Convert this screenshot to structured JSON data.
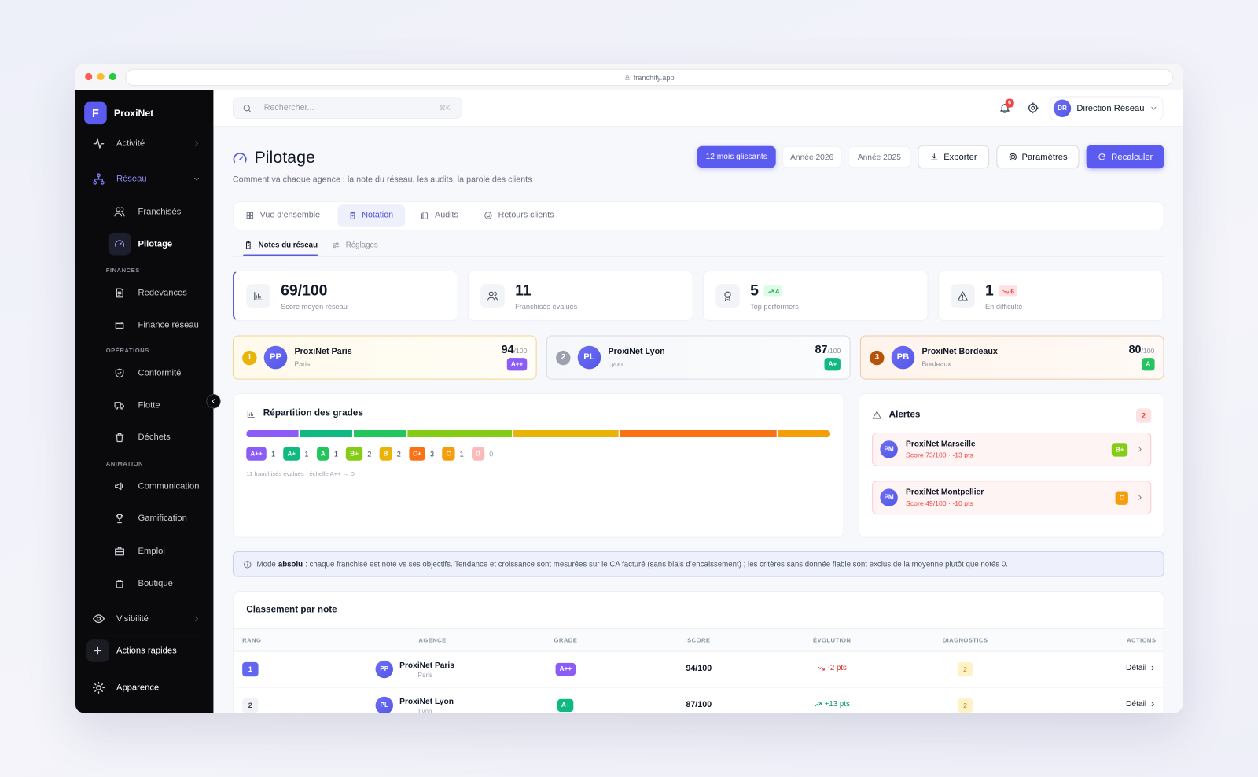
{
  "browser": {
    "url": "franchify.app"
  },
  "sidebar": {
    "brand_initial": "F",
    "brand": "ProxiNet",
    "top": [
      "Activité",
      "Réseau"
    ],
    "network": [
      "Franchisés",
      "Pilotage"
    ],
    "sections": [
      {
        "title": "FINANCES",
        "items": [
          "Redevances",
          "Finance réseau"
        ]
      },
      {
        "title": "OPÉRATIONS",
        "items": [
          "Conformité",
          "Flotte",
          "Déchets"
        ]
      },
      {
        "title": "ANIMATION",
        "items": [
          "Communication",
          "Gamification",
          "Emploi",
          "Boutique"
        ]
      }
    ],
    "bottom": {
      "visibility": "Visibilité",
      "quick_actions": "Actions rapides",
      "appearance": "Apparence"
    }
  },
  "topbar": {
    "search_placeholder": "Rechercher...",
    "shortcut": "⌘K",
    "notifications": 6,
    "user_initials": "DR",
    "user_name": "Direction Réseau"
  },
  "header": {
    "title": "Pilotage",
    "subtitle": "Comment va chaque agence : la note du réseau, les audits, la parole des clients",
    "periods": [
      "12 mois glissants",
      "Année 2026",
      "Année 2025"
    ],
    "actions": [
      "Exporter",
      "Paramètres",
      "Recalculer"
    ]
  },
  "tabs": [
    "Vue d’ensemble",
    "Notation",
    "Audits",
    "Retours clients"
  ],
  "subtabs": [
    "Notes du réseau",
    "Réglages"
  ],
  "kpis": [
    {
      "value": "69/100",
      "label": "Score moyen réseau"
    },
    {
      "value": 11,
      "label": "Franchisés évalués"
    },
    {
      "value": 5,
      "delta": 4,
      "trend": "up",
      "label": "Top performers"
    },
    {
      "value": 1,
      "delta": 6,
      "trend": "down",
      "label": "En difficulté"
    }
  ],
  "podium": [
    {
      "rank": 1,
      "initials": "PP",
      "name": "ProxiNet Paris",
      "city": "Paris",
      "score": 94,
      "out_of": "/100",
      "grade": "A++"
    },
    {
      "rank": 2,
      "initials": "PL",
      "name": "ProxiNet Lyon",
      "city": "Lyon",
      "score": 87,
      "out_of": "/100",
      "grade": "A+"
    },
    {
      "rank": 3,
      "initials": "PB",
      "name": "ProxiNet Bordeaux",
      "city": "Bordeaux",
      "score": 80,
      "out_of": "/100",
      "grade": "A"
    }
  ],
  "grades": {
    "title": "Répartition des grades",
    "items": [
      {
        "label": "A++",
        "count": 1,
        "color": "#8b5cf6"
      },
      {
        "label": "A+",
        "count": 1,
        "color": "#10b981"
      },
      {
        "label": "A",
        "count": 1,
        "color": "#22c55e"
      },
      {
        "label": "B+",
        "count": 2,
        "color": "#84cc16"
      },
      {
        "label": "B",
        "count": 2,
        "color": "#eab308"
      },
      {
        "label": "C+",
        "count": 3,
        "color": "#f97316"
      },
      {
        "label": "C",
        "count": 1,
        "color": "#f59e0b"
      },
      {
        "label": "D",
        "count": 0,
        "color": "#fca5a5"
      }
    ],
    "note": "11 franchisés évalués · échelle A++ → D"
  },
  "alerts": {
    "title": "Alertes",
    "count": 2,
    "items": [
      {
        "initials": "PM",
        "name": "ProxiNet Marseille",
        "detail": "Score 73/100 · -13 pts",
        "grade": "B+"
      },
      {
        "initials": "PM",
        "name": "ProxiNet Montpellier",
        "detail": "Score 49/100 · -10 pts",
        "grade": "C"
      }
    ]
  },
  "info": {
    "before": "Mode",
    "strong": "absolu",
    "after": ": chaque franchisé est noté vs ses objectifs. Tendance et croissance sont mesurées sur le CA facturé (sans biais d’encaissement) ; les critères sans donnée fiable sont exclus de la moyenne plutôt que notés 0."
  },
  "ranking": {
    "title": "Classement par note",
    "columns": [
      "RANG",
      "AGENCE",
      "GRADE",
      "SCORE",
      "ÉVOLUTION",
      "DIAGNOSTICS",
      "ACTIONS"
    ],
    "rows": [
      {
        "rank": 1,
        "initials": "PP",
        "name": "ProxiNet Paris",
        "city": "Paris",
        "grade": "A++",
        "score": "94/100",
        "evolution": "-2 pts",
        "trend": "down",
        "diagnostics": 2,
        "action": "Détail"
      },
      {
        "rank": 2,
        "initials": "PL",
        "name": "ProxiNet Lyon",
        "city": "Lyon",
        "grade": "A+",
        "score": "87/100",
        "evolution": "+13 pts",
        "trend": "up",
        "diagnostics": 2,
        "action": "Détail"
      }
    ]
  }
}
